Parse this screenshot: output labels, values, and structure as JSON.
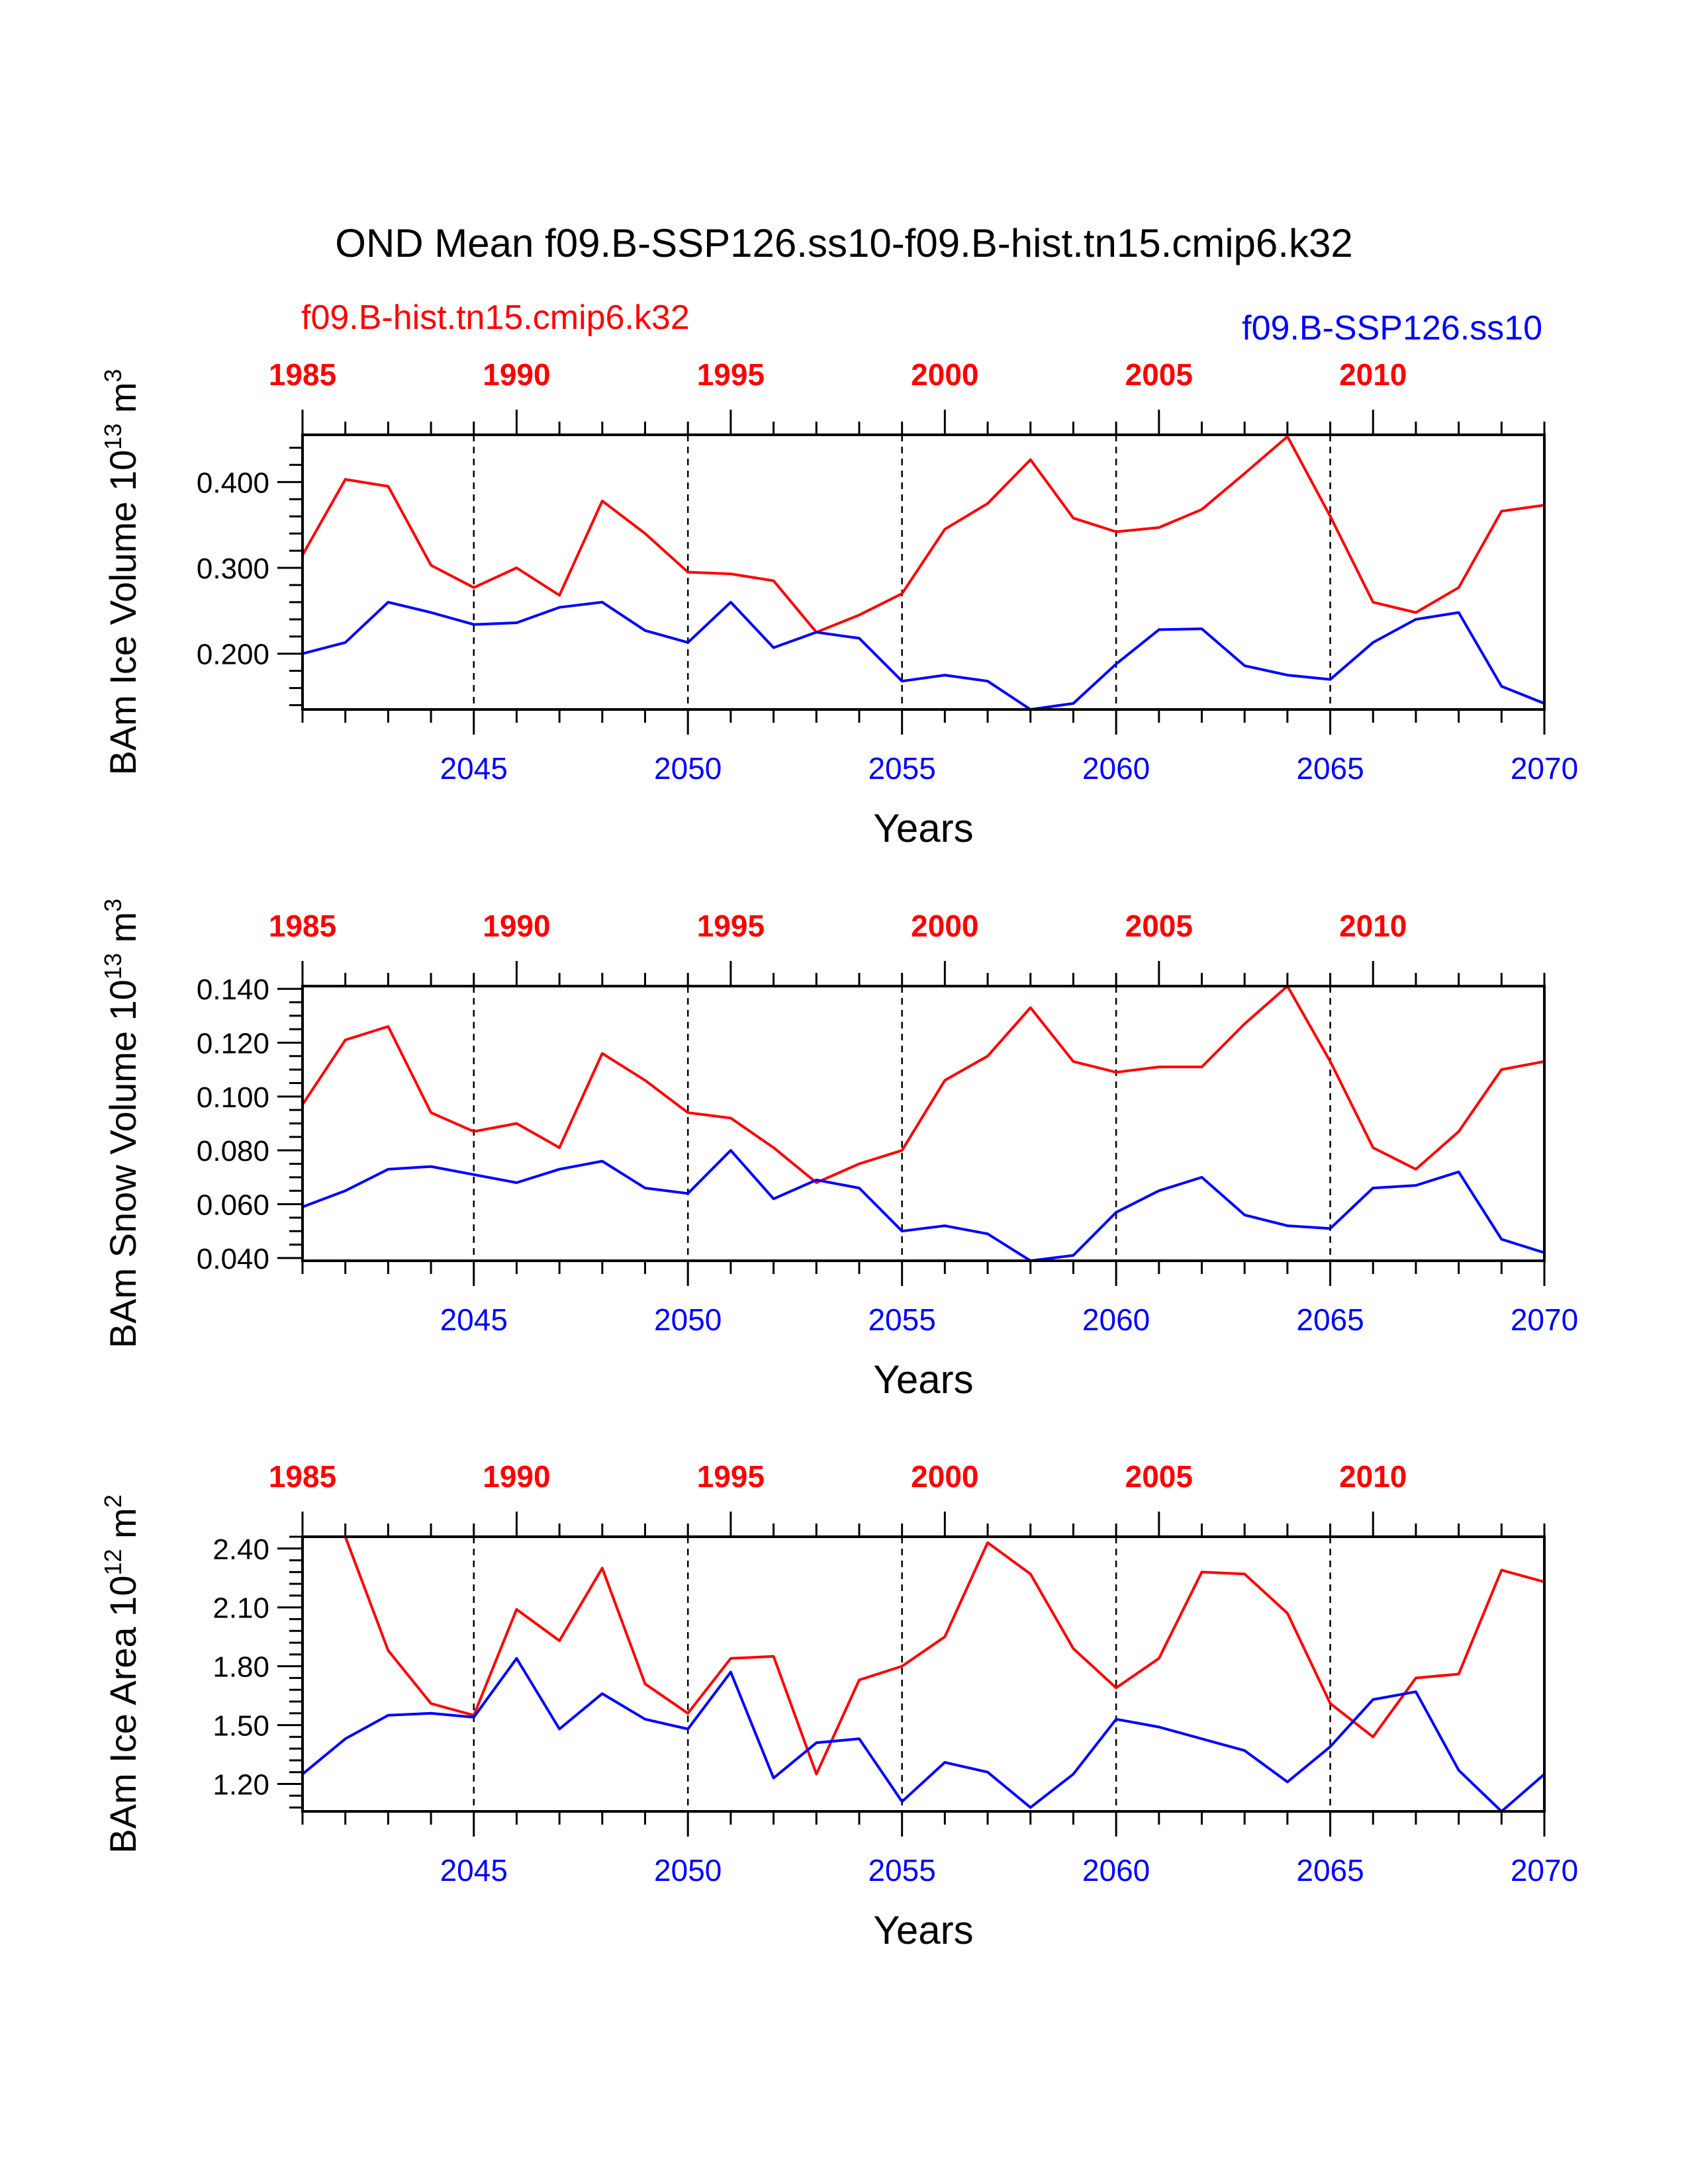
{
  "title": "OND Mean f09.B-SSP126.ss10-f09.B-hist.tn15.cmip6.k32",
  "legend": {
    "red_label": "f09.B-hist.tn15.cmip6.k32",
    "blue_label": "f09.B-SSP126.ss10"
  },
  "colors": {
    "red": "#ff0000",
    "blue": "#0000ff",
    "axis": "#000000"
  },
  "chart_data": [
    {
      "type": "line",
      "ylabel": "BAm Ice Volume 10",
      "ylabel_exp": "13",
      "ylabel_unit": " m",
      "ylabel_unit_exp": "3",
      "xlabel": "Years",
      "ylim": [
        0.135,
        0.455
      ],
      "xlim": [
        2041,
        2070
      ],
      "top_xlim": [
        1985,
        2014
      ],
      "yticks": [
        0.2,
        0.3,
        0.4
      ],
      "ytick_labels": [
        "0.200",
        "0.300",
        "0.400"
      ],
      "yminor_step": 0.02,
      "xticks": [
        2045,
        2050,
        2055,
        2060,
        2065,
        2070
      ],
      "top_xticks": [
        1985,
        1990,
        1995,
        2000,
        2005,
        2010
      ],
      "dashed_x": [
        2045,
        2050,
        2055,
        2060,
        2065
      ],
      "series": [
        {
          "name": "f09.B-hist.tn15.cmip6.k32",
          "color": "#ff0000",
          "x": [
            2041,
            2042,
            2043,
            2044,
            2045,
            2046,
            2047,
            2048,
            2049,
            2050,
            2051,
            2052,
            2053,
            2054,
            2055,
            2056,
            2057,
            2058,
            2059,
            2060,
            2061,
            2062,
            2063,
            2064,
            2065,
            2066,
            2067,
            2068,
            2069,
            2070
          ],
          "values": [
            0.315,
            0.403,
            0.395,
            0.303,
            0.277,
            0.3,
            0.268,
            0.378,
            0.34,
            0.295,
            0.293,
            0.285,
            0.225,
            0.245,
            0.27,
            0.345,
            0.375,
            0.426,
            0.358,
            0.342,
            0.347,
            0.368,
            0.41,
            0.453,
            0.36,
            0.26,
            0.248,
            0.277,
            0.366,
            0.373
          ]
        },
        {
          "name": "f09.B-SSP126.ss10",
          "color": "#0000ff",
          "x": [
            2041,
            2042,
            2043,
            2044,
            2045,
            2046,
            2047,
            2048,
            2049,
            2050,
            2051,
            2052,
            2053,
            2054,
            2055,
            2056,
            2057,
            2058,
            2059,
            2060,
            2061,
            2062,
            2063,
            2064,
            2065,
            2066,
            2067,
            2068,
            2069,
            2070
          ],
          "values": [
            0.2,
            0.213,
            0.26,
            0.248,
            0.234,
            0.236,
            0.254,
            0.26,
            0.227,
            0.213,
            0.26,
            0.207,
            0.225,
            0.218,
            0.168,
            0.175,
            0.168,
            0.135,
            0.142,
            0.188,
            0.228,
            0.229,
            0.186,
            0.175,
            0.17,
            0.213,
            0.24,
            0.248,
            0.162,
            0.142
          ]
        }
      ]
    },
    {
      "type": "line",
      "ylabel": "BAm Snow Volume 10",
      "ylabel_exp": "13",
      "ylabel_unit": " m",
      "ylabel_unit_exp": "3",
      "xlabel": "Years",
      "ylim": [
        0.039,
        0.141
      ],
      "xlim": [
        2041,
        2070
      ],
      "top_xlim": [
        1985,
        2014
      ],
      "yticks": [
        0.04,
        0.06,
        0.08,
        0.1,
        0.12,
        0.14
      ],
      "ytick_labels": [
        "0.040",
        "0.060",
        "0.080",
        "0.100",
        "0.120",
        "0.140"
      ],
      "yminor_step": 0.005,
      "xticks": [
        2045,
        2050,
        2055,
        2060,
        2065,
        2070
      ],
      "top_xticks": [
        1985,
        1990,
        1995,
        2000,
        2005,
        2010
      ],
      "dashed_x": [
        2045,
        2050,
        2055,
        2060,
        2065
      ],
      "series": [
        {
          "name": "f09.B-hist.tn15.cmip6.k32",
          "color": "#ff0000",
          "x": [
            2041,
            2042,
            2043,
            2044,
            2045,
            2046,
            2047,
            2048,
            2049,
            2050,
            2051,
            2052,
            2053,
            2054,
            2055,
            2056,
            2057,
            2058,
            2059,
            2060,
            2061,
            2062,
            2063,
            2064,
            2065,
            2066,
            2067,
            2068,
            2069,
            2070
          ],
          "values": [
            0.097,
            0.121,
            0.126,
            0.094,
            0.087,
            0.09,
            0.081,
            0.116,
            0.106,
            0.094,
            0.092,
            0.081,
            0.068,
            0.075,
            0.08,
            0.106,
            0.115,
            0.133,
            0.113,
            0.109,
            0.111,
            0.111,
            0.127,
            0.141,
            0.113,
            0.081,
            0.073,
            0.087,
            0.11,
            0.113
          ]
        },
        {
          "name": "f09.B-SSP126.ss10",
          "color": "#0000ff",
          "x": [
            2041,
            2042,
            2043,
            2044,
            2045,
            2046,
            2047,
            2048,
            2049,
            2050,
            2051,
            2052,
            2053,
            2054,
            2055,
            2056,
            2057,
            2058,
            2059,
            2060,
            2061,
            2062,
            2063,
            2064,
            2065,
            2066,
            2067,
            2068,
            2069,
            2070
          ],
          "values": [
            0.059,
            0.065,
            0.073,
            0.074,
            0.071,
            0.068,
            0.073,
            0.076,
            0.066,
            0.064,
            0.08,
            0.062,
            0.069,
            0.066,
            0.05,
            0.052,
            0.049,
            0.039,
            0.041,
            0.057,
            0.065,
            0.07,
            0.056,
            0.052,
            0.051,
            0.066,
            0.067,
            0.072,
            0.047,
            0.042
          ]
        }
      ]
    },
    {
      "type": "line",
      "ylabel": "BAm Ice Area 10",
      "ylabel_exp": "12",
      "ylabel_unit": " m",
      "ylabel_unit_exp": "2",
      "xlabel": "Years",
      "ylim": [
        1.06,
        2.46
      ],
      "xlim": [
        2041,
        2070
      ],
      "top_xlim": [
        1985,
        2014
      ],
      "yticks": [
        1.2,
        1.5,
        1.8,
        2.1,
        2.4
      ],
      "ytick_labels": [
        "1.20",
        "1.50",
        "1.80",
        "2.10",
        "2.40"
      ],
      "yminor_step": 0.06,
      "xticks": [
        2045,
        2050,
        2055,
        2060,
        2065,
        2070
      ],
      "top_xticks": [
        1985,
        1990,
        1995,
        2000,
        2005,
        2010
      ],
      "dashed_x": [
        2045,
        2050,
        2055,
        2060,
        2065
      ],
      "series": [
        {
          "name": "f09.B-hist.tn15.cmip6.k32",
          "color": "#ff0000",
          "x": [
            2041,
            2042,
            2043,
            2044,
            2045,
            2046,
            2047,
            2048,
            2049,
            2050,
            2051,
            2052,
            2053,
            2054,
            2055,
            2056,
            2057,
            2058,
            2059,
            2060,
            2061,
            2062,
            2063,
            2064,
            2065,
            2066,
            2067,
            2068,
            2069,
            2070
          ],
          "values": [
            2.46,
            2.46,
            1.88,
            1.61,
            1.55,
            2.09,
            1.93,
            2.3,
            1.71,
            1.56,
            1.84,
            1.85,
            1.25,
            1.73,
            1.8,
            1.95,
            2.43,
            2.27,
            1.89,
            1.69,
            1.84,
            2.28,
            2.27,
            2.07,
            1.61,
            1.44,
            1.74,
            1.76,
            2.29,
            2.23
          ]
        },
        {
          "name": "f09.B-SSP126.ss10",
          "color": "#0000ff",
          "x": [
            2041,
            2042,
            2043,
            2044,
            2045,
            2046,
            2047,
            2048,
            2049,
            2050,
            2051,
            2052,
            2053,
            2054,
            2055,
            2056,
            2057,
            2058,
            2059,
            2060,
            2061,
            2062,
            2063,
            2064,
            2065,
            2066,
            2067,
            2068,
            2069,
            2070
          ],
          "values": [
            1.25,
            1.43,
            1.55,
            1.56,
            1.54,
            1.84,
            1.48,
            1.66,
            1.53,
            1.48,
            1.77,
            1.23,
            1.41,
            1.43,
            1.11,
            1.31,
            1.26,
            1.08,
            1.25,
            1.53,
            1.49,
            1.43,
            1.37,
            1.21,
            1.39,
            1.63,
            1.67,
            1.27,
            1.06,
            1.25
          ]
        }
      ]
    }
  ]
}
